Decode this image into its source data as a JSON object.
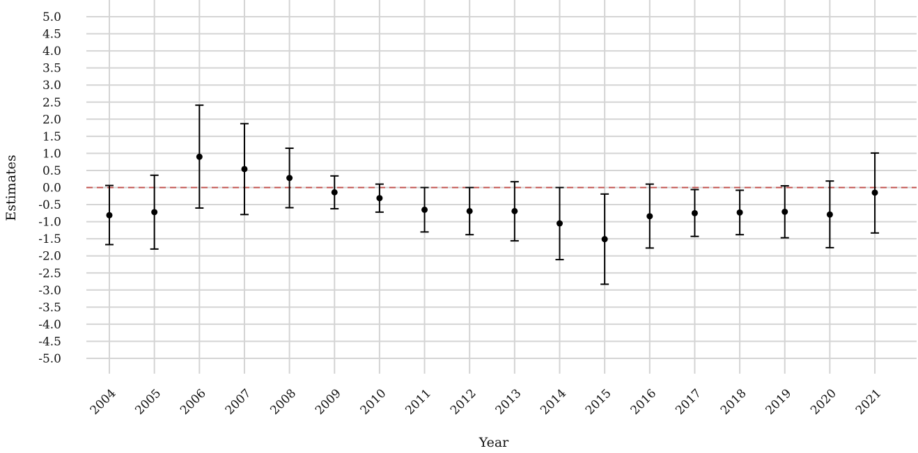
{
  "chart_data": {
    "type": "scatter",
    "title": "",
    "xlabel": "Year",
    "ylabel": "Estimates",
    "ylim": [
      -5.0,
      5.0
    ],
    "yticks": [
      "5.0",
      "4.5",
      "4.0",
      "3.5",
      "3.0",
      "2.5",
      "2.0",
      "1.5",
      "1.0",
      "0.5",
      "0.0",
      "-0.5",
      "-1.0",
      "-1.5",
      "-2.0",
      "-2.5",
      "-3.0",
      "-3.5",
      "-4.0",
      "-4.5",
      "-5.0"
    ],
    "reference_line": {
      "y": 0.0,
      "style": "dashed",
      "color": "#c0504d"
    },
    "grid": true,
    "categories": [
      "2004",
      "2005",
      "2006",
      "2007",
      "2008",
      "2009",
      "2010",
      "2011",
      "2012",
      "2013",
      "2014",
      "2015",
      "2016",
      "2017",
      "2018",
      "2019",
      "2020",
      "2021"
    ],
    "estimates": [
      -0.81,
      -0.72,
      0.9,
      0.54,
      0.28,
      -0.14,
      -0.31,
      -0.65,
      -0.69,
      -0.69,
      -1.05,
      -1.51,
      -0.84,
      -0.75,
      -0.73,
      -0.71,
      -0.79,
      -0.15
    ],
    "lower": [
      -1.67,
      -1.8,
      -0.6,
      -0.79,
      -0.59,
      -0.62,
      -0.72,
      -1.3,
      -1.38,
      -1.56,
      -2.11,
      -2.83,
      -1.77,
      -1.43,
      -1.38,
      -1.47,
      -1.76,
      -1.33
    ],
    "upper": [
      0.06,
      0.36,
      2.41,
      1.87,
      1.15,
      0.34,
      0.1,
      0.0,
      0.0,
      0.17,
      0.0,
      -0.19,
      0.1,
      -0.06,
      -0.08,
      0.05,
      0.19,
      1.01
    ]
  }
}
